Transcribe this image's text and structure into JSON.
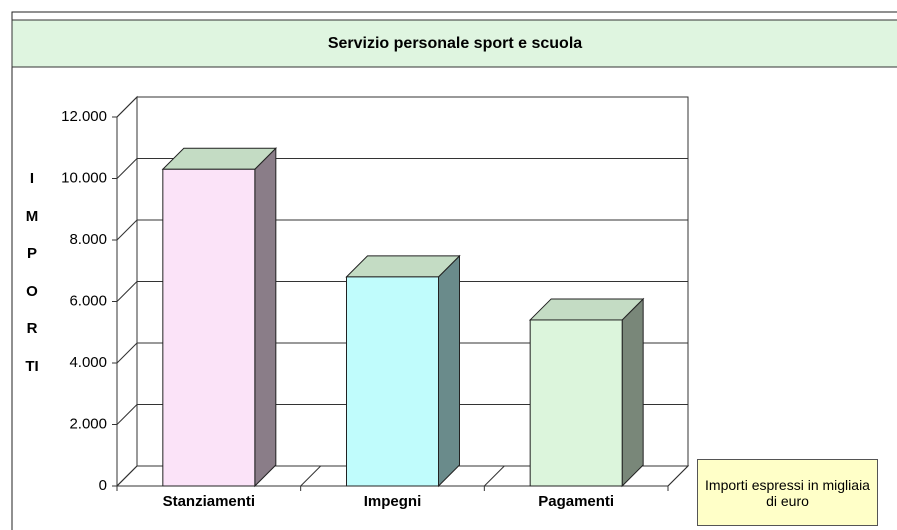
{
  "chart_data": {
    "type": "bar",
    "title": "Servizio personale sport e scuola",
    "y_label": "IMPORTI",
    "note": "Importi espressi in migliaia di euro",
    "categories": [
      "Stanziamenti",
      "Impegni",
      "Pagamenti"
    ],
    "values": [
      10300,
      6800,
      5400
    ],
    "colors": [
      "#fbe3f8",
      "#c0fcfc",
      "#dcf5dc"
    ],
    "ylim": [
      0,
      12000
    ],
    "yticks": [
      0,
      {
        "value": 2000,
        "label": "2.000"
      },
      {
        "value": 4000,
        "label": "4.000"
      },
      {
        "value": 6000,
        "label": "6.000"
      },
      {
        "value": 8000,
        "label": "8.000"
      },
      {
        "value": 10000,
        "label": "10.000"
      },
      {
        "value": 12000,
        "label": "12.000"
      }
    ],
    "grid": true
  }
}
